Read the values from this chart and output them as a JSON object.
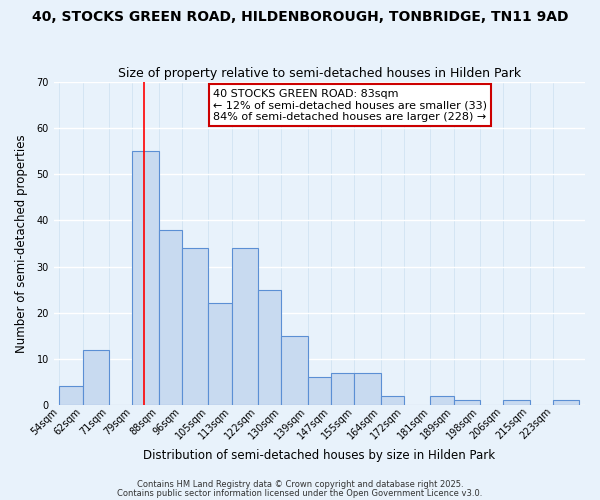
{
  "title": "40, STOCKS GREEN ROAD, HILDENBOROUGH, TONBRIDGE, TN11 9AD",
  "subtitle": "Size of property relative to semi-detached houses in Hilden Park",
  "xlabel": "Distribution of semi-detached houses by size in Hilden Park",
  "ylabel": "Number of semi-detached properties",
  "bin_labels": [
    "54sqm",
    "62sqm",
    "71sqm",
    "79sqm",
    "88sqm",
    "96sqm",
    "105sqm",
    "113sqm",
    "122sqm",
    "130sqm",
    "139sqm",
    "147sqm",
    "155sqm",
    "164sqm",
    "172sqm",
    "181sqm",
    "189sqm",
    "198sqm",
    "206sqm",
    "215sqm",
    "223sqm"
  ],
  "bar_lefts": [
    54,
    62,
    71,
    79,
    88,
    96,
    105,
    113,
    122,
    130,
    139,
    147,
    155,
    164,
    172,
    181,
    189,
    198,
    206,
    215,
    223
  ],
  "bar_widths": [
    8,
    9,
    8,
    9,
    8,
    9,
    8,
    9,
    8,
    9,
    8,
    8,
    9,
    8,
    9,
    8,
    9,
    8,
    9,
    8,
    9
  ],
  "bar_heights": [
    4,
    12,
    0,
    55,
    38,
    34,
    22,
    34,
    25,
    15,
    6,
    7,
    7,
    2,
    0,
    2,
    1,
    0,
    1,
    0,
    1
  ],
  "bar_color": "#c8daf0",
  "bar_edge_color": "#5b8fd4",
  "background_color": "#e8f2fb",
  "grid_color": "#ccddf0",
  "ylim": [
    0,
    70
  ],
  "yticks": [
    0,
    10,
    20,
    30,
    40,
    50,
    60,
    70
  ],
  "red_line_x": 83,
  "annotation_title": "40 STOCKS GREEN ROAD: 83sqm",
  "annotation_line1": "← 12% of semi-detached houses are smaller (33)",
  "annotation_line2": "84% of semi-detached houses are larger (228) →",
  "annotation_box_facecolor": "#ffffff",
  "annotation_box_edgecolor": "#cc0000",
  "footer1": "Contains HM Land Registry data © Crown copyright and database right 2025.",
  "footer2": "Contains public sector information licensed under the Open Government Licence v3.0.",
  "title_fontsize": 10,
  "subtitle_fontsize": 9,
  "annotation_fontsize": 8,
  "tick_fontsize": 7,
  "axis_label_fontsize": 8.5,
  "footer_fontsize": 6
}
